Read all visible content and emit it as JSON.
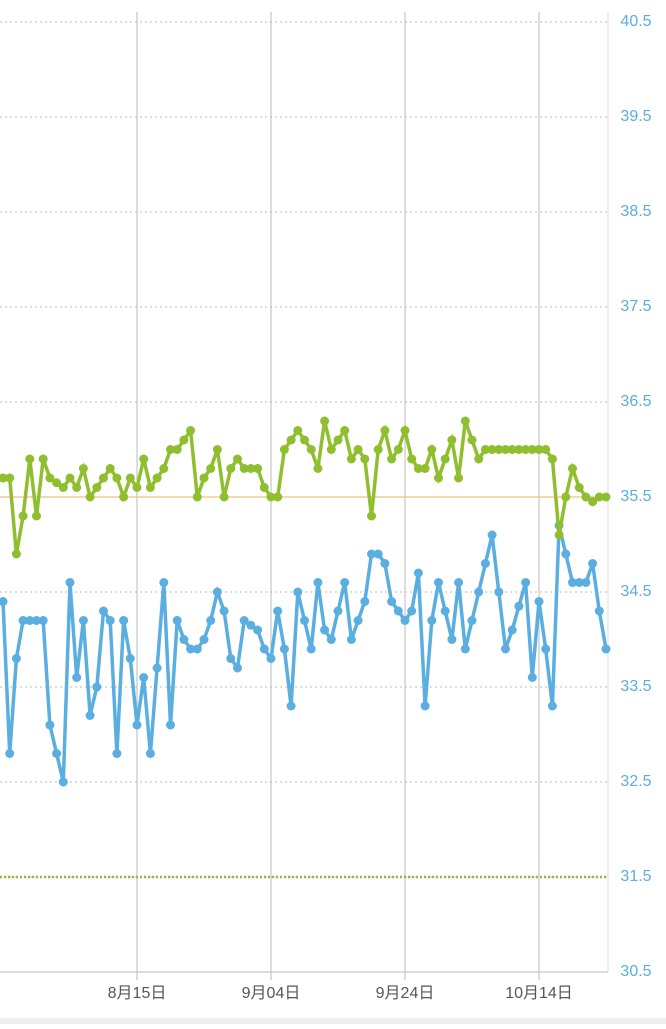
{
  "chart_data": {
    "type": "line",
    "categories": [
      null,
      null,
      null,
      null,
      null,
      null,
      null,
      null,
      null,
      null,
      null,
      null,
      null,
      null,
      null,
      null,
      null,
      null,
      null,
      null,
      "8月15日",
      null,
      null,
      null,
      null,
      null,
      null,
      null,
      null,
      null,
      null,
      null,
      null,
      null,
      null,
      null,
      null,
      null,
      null,
      null,
      "9月04日",
      null,
      null,
      null,
      null,
      null,
      null,
      null,
      null,
      null,
      null,
      null,
      null,
      null,
      null,
      null,
      null,
      null,
      null,
      null,
      "9月24日",
      null,
      null,
      null,
      null,
      null,
      null,
      null,
      null,
      null,
      null,
      null,
      null,
      null,
      null,
      null,
      null,
      null,
      null,
      null,
      "10月14日",
      null,
      null,
      null,
      null,
      null,
      null,
      null,
      null,
      null,
      null
    ],
    "series": [
      {
        "color": "#5aaee0",
        "values": [
          34.4,
          32.8,
          33.8,
          34.2,
          34.2,
          34.2,
          34.2,
          33.1,
          32.8,
          32.5,
          34.6,
          33.6,
          34.2,
          33.2,
          33.5,
          34.3,
          34.2,
          32.8,
          34.2,
          33.8,
          33.1,
          33.6,
          32.8,
          33.7,
          34.6,
          33.1,
          34.2,
          34.0,
          33.9,
          33.9,
          34.0,
          34.2,
          34.5,
          34.3,
          33.8,
          33.7,
          34.2,
          34.15,
          34.1,
          33.9,
          33.8,
          34.3,
          33.9,
          33.3,
          34.5,
          34.2,
          33.9,
          34.6,
          34.1,
          34.0,
          34.3,
          34.6,
          34.0,
          34.2,
          34.4,
          34.9,
          34.9,
          34.8,
          34.4,
          34.3,
          34.2,
          34.3,
          34.7,
          33.3,
          34.2,
          34.6,
          34.3,
          34.0,
          34.6,
          33.9,
          34.2,
          34.5,
          34.8,
          35.1,
          34.5,
          33.9,
          34.1,
          34.35,
          34.6,
          33.6,
          34.4,
          33.9,
          33.3,
          35.2,
          34.9,
          34.6,
          34.6,
          34.6,
          34.8,
          34.3,
          33.9
        ]
      },
      {
        "color": "#8fbf2e",
        "values": [
          35.7,
          35.7,
          34.9,
          35.3,
          35.9,
          35.3,
          35.9,
          35.7,
          35.65,
          35.6,
          35.7,
          35.6,
          35.8,
          35.5,
          35.6,
          35.7,
          35.8,
          35.7,
          35.5,
          35.7,
          35.6,
          35.9,
          35.6,
          35.7,
          35.8,
          36.0,
          36.0,
          36.1,
          36.2,
          35.5,
          35.7,
          35.8,
          36.0,
          35.5,
          35.8,
          35.9,
          35.8,
          35.8,
          35.8,
          35.6,
          35.5,
          35.5,
          36.0,
          36.1,
          36.2,
          36.1,
          36.0,
          35.8,
          36.3,
          36.0,
          36.1,
          36.2,
          35.9,
          36.0,
          35.9,
          35.3,
          36.0,
          36.2,
          35.9,
          36.0,
          36.2,
          35.9,
          35.8,
          35.8,
          36.0,
          35.7,
          35.9,
          36.1,
          35.7,
          36.3,
          36.1,
          35.9,
          36.0,
          36.0,
          36.0,
          36.0,
          36.0,
          36.0,
          36.0,
          36.0,
          36.0,
          36.0,
          35.9,
          35.1,
          35.5,
          35.8,
          35.6,
          35.5,
          35.45,
          35.5,
          35.5
        ]
      }
    ],
    "reference_lines": [
      {
        "value": 35.5,
        "color": "#f0c080",
        "style": "solid"
      },
      {
        "value": 31.5,
        "color": "#8fbf2e",
        "style": "dotted"
      }
    ],
    "ylim": [
      30.5,
      40.5
    ],
    "yticks": [
      30.5,
      31.5,
      32.5,
      33.5,
      34.5,
      35.5,
      36.5,
      37.5,
      38.5,
      39.5,
      40.5
    ],
    "axis_side": "right",
    "grid": true
  }
}
